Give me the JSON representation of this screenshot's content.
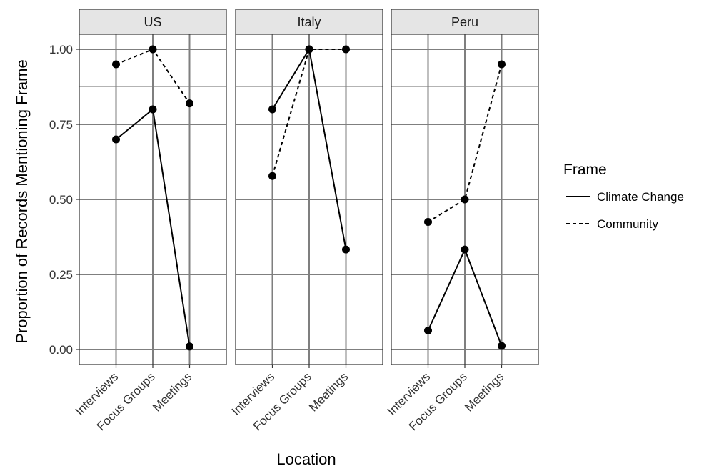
{
  "chart_data": {
    "type": "line",
    "xlabel": "Location",
    "ylabel": "Proportion of Records Mentioning Frame",
    "categories": [
      "Interviews",
      "Focus Groups",
      "Meetings"
    ],
    "y_ticks": [
      "0.00",
      "0.25",
      "0.50",
      "0.75",
      "1.00"
    ],
    "ylim": [
      -0.05,
      1.05
    ],
    "grid": true,
    "legend": {
      "title": "Frame",
      "position": "right",
      "entries": [
        {
          "label": "Climate Change",
          "line_style": "solid"
        },
        {
          "label": "Community",
          "line_style": "dashed"
        }
      ]
    },
    "panels": [
      {
        "label": "US",
        "series": [
          {
            "name": "Climate Change",
            "values": [
              0.7,
              0.8,
              0.01
            ]
          },
          {
            "name": "Community",
            "values": [
              0.95,
              1.0,
              0.82
            ]
          }
        ]
      },
      {
        "label": "Italy",
        "series": [
          {
            "name": "Climate Change",
            "values": [
              0.8,
              1.0,
              0.333
            ]
          },
          {
            "name": "Community",
            "values": [
              0.578,
              1.0,
              1.0
            ]
          }
        ]
      },
      {
        "label": "Peru",
        "series": [
          {
            "name": "Climate Change",
            "values": [
              0.063,
              0.333,
              0.012
            ]
          },
          {
            "name": "Community",
            "values": [
              0.425,
              0.5,
              0.95
            ]
          }
        ]
      }
    ],
    "colors": {
      "panel_bg": "#ffffff",
      "panel_border": "#333333",
      "grid_major": "#7f7f7f",
      "grid_minor": "#b3b3b3",
      "strip_bg": "#e5e5e5",
      "line": "#000000"
    }
  }
}
